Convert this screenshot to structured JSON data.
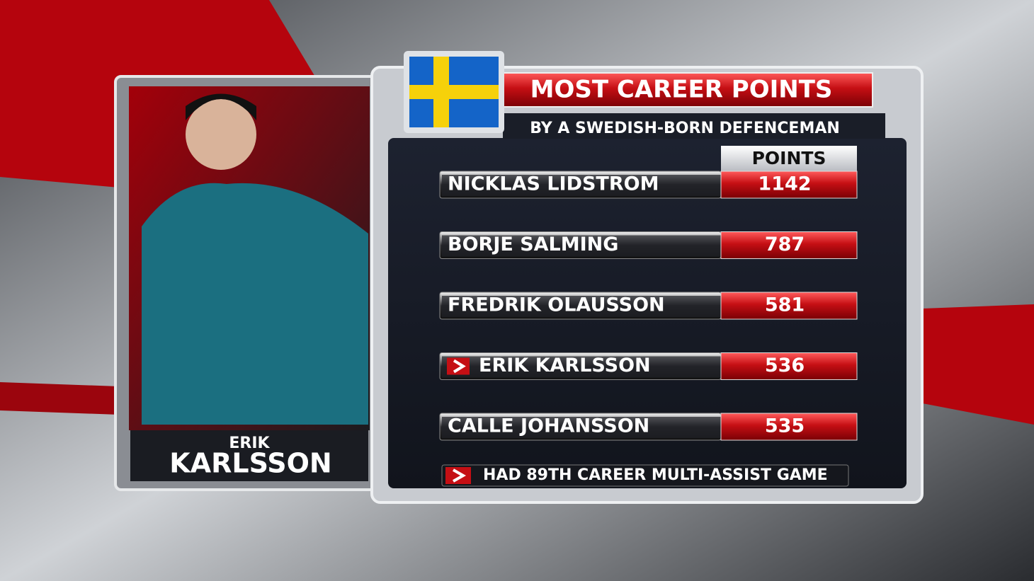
{
  "header": {
    "title": "MOST CAREER POINTS",
    "subtitle": "BY A SWEDISH-BORN DEFENCEMAN"
  },
  "player": {
    "first_name": "ERIK",
    "last_name": "KARLSSON"
  },
  "table": {
    "column_header": "POINTS",
    "rows": [
      {
        "name": "NICKLAS LIDSTROM",
        "points": "1142",
        "highlight": false
      },
      {
        "name": "BORJE SALMING",
        "points": "787",
        "highlight": false
      },
      {
        "name": "FREDRIK OLAUSSON",
        "points": "581",
        "highlight": false
      },
      {
        "name": "ERIK KARLSSON",
        "points": "536",
        "highlight": true
      },
      {
        "name": "CALLE JOHANSSON",
        "points": "535",
        "highlight": false
      }
    ]
  },
  "note": "HAD 89TH CAREER MULTI-ASSIST GAME"
}
